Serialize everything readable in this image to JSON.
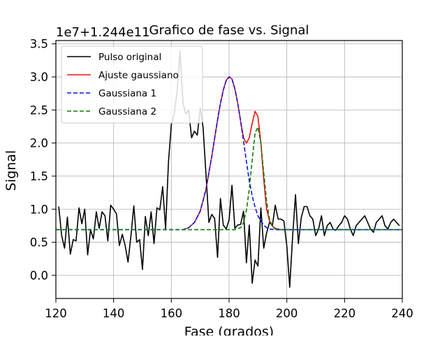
{
  "chart_data": {
    "type": "line",
    "title": "Grafico de fase vs. Signal",
    "xlabel": "Fase (grados)",
    "ylabel": "Signal",
    "offset_text": "1e7+1.244e11",
    "xlim": [
      120,
      240
    ],
    "ylim": [
      -0.35,
      3.55
    ],
    "x_ticks": [
      120,
      140,
      160,
      180,
      200,
      220,
      240
    ],
    "x_tick_labels": [
      "120",
      "140",
      "160",
      "180",
      "200",
      "220",
      "240"
    ],
    "y_ticks": [
      0.0,
      0.5,
      1.0,
      1.5,
      2.0,
      2.5,
      3.0,
      3.5
    ],
    "y_tick_labels": [
      "0.0",
      "0.5",
      "1.0",
      "1.5",
      "2.0",
      "2.5",
      "3.0",
      "3.5"
    ],
    "grid": true,
    "legend_position": "top-left",
    "series": [
      {
        "name": "Pulso original",
        "color": "#000000",
        "style": "solid",
        "x": [
          121,
          122,
          123,
          124,
          125,
          126,
          127,
          128,
          129,
          130,
          131,
          132,
          133,
          134,
          135,
          136,
          137,
          138,
          139,
          140,
          141,
          142,
          143,
          144,
          145,
          146,
          147,
          148,
          149,
          150,
          151,
          152,
          153,
          154,
          155,
          156,
          157,
          158,
          159,
          160,
          161,
          162,
          163,
          164,
          165,
          166,
          167,
          168,
          169,
          170,
          171,
          172,
          173,
          174,
          175,
          176,
          177,
          178,
          179,
          180,
          181,
          182,
          183,
          184,
          185,
          186,
          187,
          188,
          189,
          190,
          191,
          192,
          193,
          194,
          195,
          196,
          197,
          198,
          199,
          200,
          201,
          202,
          203,
          204,
          205,
          206,
          207,
          208,
          209,
          210,
          211,
          212,
          213,
          214,
          215,
          216,
          217,
          218,
          219,
          220,
          221,
          222,
          223,
          224,
          225,
          226,
          227,
          228,
          229,
          230,
          231,
          232,
          233,
          234,
          235,
          236,
          237,
          238,
          239
        ],
        "y": [
          1.04,
          0.6,
          0.41,
          0.88,
          0.32,
          0.54,
          0.52,
          1.02,
          0.78,
          1.0,
          0.31,
          0.69,
          0.55,
          0.96,
          0.71,
          0.96,
          0.9,
          0.52,
          1.06,
          1.0,
          0.93,
          0.45,
          0.62,
          0.45,
          0.2,
          0.6,
          1.05,
          0.5,
          0.54,
          0.09,
          0.89,
          0.6,
          0.96,
          0.48,
          1.02,
          0.99,
          1.34,
          0.7,
          1.71,
          2.28,
          2.45,
          2.78,
          3.39,
          2.62,
          2.44,
          2.5,
          2.08,
          2.18,
          2.12,
          2.53,
          2.23,
          1.53,
          0.8,
          0.92,
          0.86,
          0.27,
          1.16,
          0.76,
          0.7,
          0.84,
          1.36,
          0.71,
          0.76,
          0.77,
          0.97,
          0.19,
          0.76,
          -0.12,
          0.23,
          0.14,
          1.02,
          0.41,
          0.64,
          0.8,
          0.75,
          1.06,
          0.85,
          0.85,
          0.82,
          0.44,
          -0.18,
          0.58,
          1.22,
          0.48,
          0.87,
          1.04,
          1.04,
          0.9,
          0.85,
          0.6,
          0.7,
          0.9,
          0.6,
          0.75,
          0.8,
          0.7,
          0.68,
          0.75,
          0.8,
          0.9,
          0.85,
          0.7,
          0.6,
          0.75,
          0.8,
          0.85,
          0.9,
          0.8,
          0.7,
          0.65,
          0.8,
          0.85,
          0.9,
          0.75,
          0.7,
          0.8,
          0.85,
          0.8,
          0.75
        ]
      },
      {
        "name": "Ajuste gaussiano",
        "color": "#e8120c",
        "style": "solid",
        "x": [
          164,
          166,
          168,
          170,
          172,
          174,
          176,
          177,
          178,
          179,
          180,
          181,
          182,
          183,
          184,
          185,
          186,
          187,
          188,
          189,
          190,
          191,
          192,
          193,
          194,
          195,
          196,
          198,
          200,
          203
        ],
        "y": [
          0.69,
          0.72,
          0.8,
          0.97,
          1.3,
          1.8,
          2.35,
          2.6,
          2.8,
          2.95,
          3.0,
          2.97,
          2.82,
          2.6,
          2.33,
          2.08,
          2.0,
          2.08,
          2.3,
          2.48,
          2.4,
          2.0,
          1.45,
          1.0,
          0.82,
          0.74,
          0.71,
          0.69,
          0.69,
          0.69
        ]
      },
      {
        "name": "Gaussiana 1",
        "color": "#0a12e8",
        "style": "dashed",
        "x": [
          120,
          160,
          164,
          166,
          168,
          170,
          172,
          174,
          176,
          177,
          178,
          179,
          180,
          181,
          182,
          183,
          184,
          185,
          186,
          187,
          188,
          189,
          190,
          191,
          192,
          193,
          194,
          196,
          198,
          200,
          240
        ],
        "y": [
          0.69,
          0.69,
          0.69,
          0.72,
          0.8,
          0.97,
          1.3,
          1.8,
          2.35,
          2.6,
          2.8,
          2.95,
          3.0,
          2.97,
          2.82,
          2.6,
          2.33,
          2.03,
          1.72,
          1.43,
          1.2,
          1.03,
          0.9,
          0.82,
          0.76,
          0.72,
          0.7,
          0.69,
          0.69,
          0.69,
          0.69
        ]
      },
      {
        "name": "Gaussiana 2",
        "color": "#0e7d0e",
        "style": "dashed",
        "x": [
          120,
          182,
          184,
          185,
          186,
          187,
          188,
          189,
          190,
          191,
          192,
          193,
          194,
          195,
          196,
          198,
          200,
          240
        ],
        "y": [
          0.69,
          0.69,
          0.72,
          0.8,
          0.98,
          1.3,
          1.75,
          2.15,
          2.24,
          2.0,
          1.55,
          1.12,
          0.85,
          0.74,
          0.7,
          0.69,
          0.69,
          0.69
        ]
      }
    ]
  }
}
